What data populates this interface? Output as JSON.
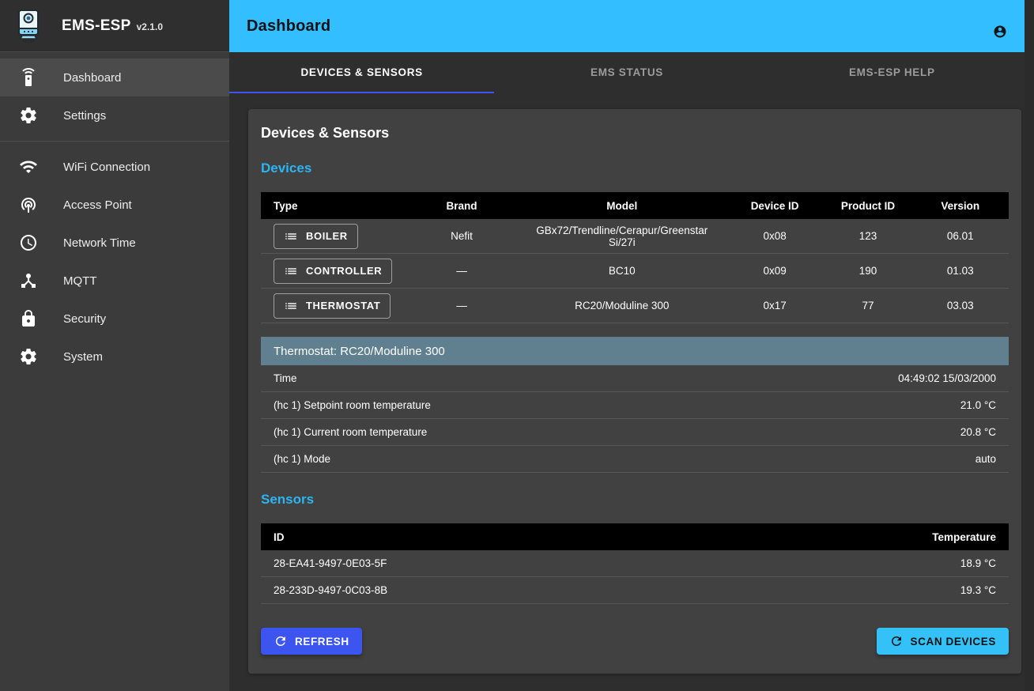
{
  "app": {
    "title": "EMS-ESP",
    "version": "v2.1.0"
  },
  "header": {
    "title": "Dashboard",
    "avatar_icon": "account-circle-icon"
  },
  "sidebar": {
    "groups": [
      [
        {
          "label": "Dashboard",
          "icon": "settings-remote-icon",
          "selected": true
        },
        {
          "label": "Settings",
          "icon": "gear-icon",
          "selected": false
        }
      ],
      [
        {
          "label": "WiFi Connection",
          "icon": "wifi-icon",
          "selected": false
        },
        {
          "label": "Access Point",
          "icon": "wifi-tethering-icon",
          "selected": false
        },
        {
          "label": "Network Time",
          "icon": "clock-icon",
          "selected": false
        },
        {
          "label": "MQTT",
          "icon": "device-hub-icon",
          "selected": false
        },
        {
          "label": "Security",
          "icon": "lock-icon",
          "selected": false
        },
        {
          "label": "System",
          "icon": "gear-icon",
          "selected": false
        }
      ]
    ]
  },
  "tabs": [
    {
      "label": "DEVICES & SENSORS",
      "active": true
    },
    {
      "label": "EMS STATUS",
      "active": false
    },
    {
      "label": "EMS-ESP HELP",
      "active": false
    }
  ],
  "panel": {
    "title": "Devices & Sensors",
    "devices": {
      "heading": "Devices",
      "columns": [
        "Type",
        "Brand",
        "Model",
        "Device ID",
        "Product ID",
        "Version"
      ],
      "type_button_icon": "list-icon",
      "rows": [
        {
          "type": "BOILER",
          "brand": "Nefit",
          "model": "GBx72/Trendline/Cerapur/Greenstar Si/27i",
          "device_id": "0x08",
          "product_id": "123",
          "version": "06.01"
        },
        {
          "type": "CONTROLLER",
          "brand": "—",
          "model": "BC10",
          "device_id": "0x09",
          "product_id": "190",
          "version": "01.03"
        },
        {
          "type": "THERMOSTAT",
          "brand": "—",
          "model": "RC20/Moduline 300",
          "device_id": "0x17",
          "product_id": "77",
          "version": "03.03"
        }
      ]
    },
    "device_detail": {
      "heading": "Thermostat: RC20/Moduline 300",
      "rows": [
        {
          "label": "Time",
          "value": "04:49:02 15/03/2000"
        },
        {
          "label": "(hc 1) Setpoint room temperature",
          "value": "21.0 °C"
        },
        {
          "label": "(hc 1) Current room temperature",
          "value": "20.8 °C"
        },
        {
          "label": "(hc 1) Mode",
          "value": "auto"
        }
      ]
    },
    "sensors": {
      "heading": "Sensors",
      "columns": [
        "ID",
        "Temperature"
      ],
      "rows": [
        {
          "id": "28-EA41-9497-0E03-5F",
          "temperature": "18.9 °C"
        },
        {
          "id": "28-233D-9497-0C03-8B",
          "temperature": "19.3 °C"
        }
      ]
    },
    "buttons": {
      "refresh": "REFRESH",
      "refresh_icon": "refresh-icon",
      "scan": "SCAN DEVICES",
      "scan_icon": "refresh-icon"
    }
  },
  "colors": {
    "appbar": "#33bfff",
    "accent": "#2cb5f2",
    "tab_indicator": "#3d55f0",
    "section_header": "#60808f",
    "refresh_button": "#3c55f0",
    "scan_button": "#33c1f7"
  }
}
